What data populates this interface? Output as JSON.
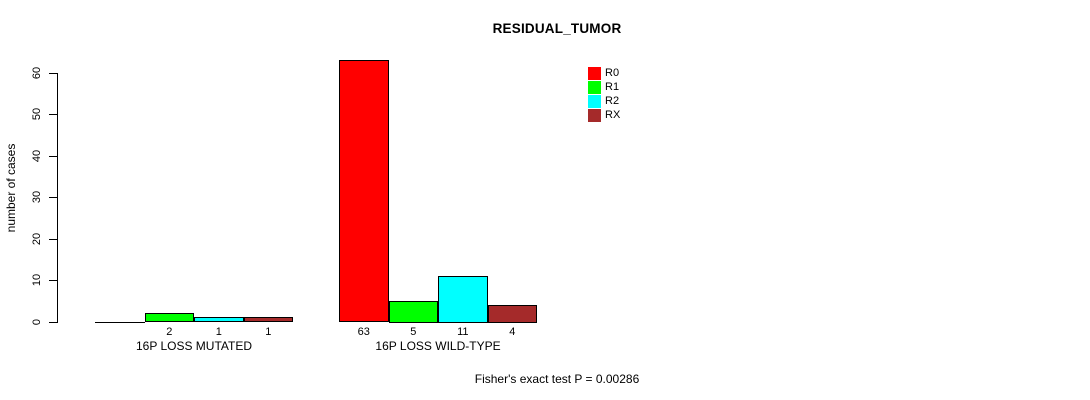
{
  "chart_data": {
    "type": "bar",
    "title": "RESIDUAL_TUMOR",
    "ylabel": "number of cases",
    "xlabel": "",
    "categories": [
      "16P LOSS MUTATED",
      "16P LOSS WILD-TYPE"
    ],
    "series": [
      {
        "name": "R0",
        "color": "#ff0000",
        "values": [
          0,
          63
        ]
      },
      {
        "name": "R1",
        "color": "#00ff00",
        "values": [
          2,
          5
        ]
      },
      {
        "name": "R2",
        "color": "#00ffff",
        "values": [
          1,
          11
        ]
      },
      {
        "name": "RX",
        "color": "#a52a2a",
        "values": [
          1,
          4
        ]
      }
    ],
    "bar_count_labels": {
      "16P LOSS MUTATED": [
        "",
        "2",
        "1",
        "1"
      ],
      "16P LOSS WILD-TYPE": [
        "63",
        "5",
        "11",
        "4"
      ]
    },
    "hide_zero_count_labels": true,
    "yticks": [
      0,
      10,
      20,
      30,
      40,
      50,
      60
    ],
    "ylim": [
      0,
      60
    ],
    "grid": false,
    "legend_position": "top-right",
    "legend_entries": [
      "R0",
      "R1",
      "R2",
      "RX"
    ],
    "footnote": "Fisher's exact test P = 0.00286"
  }
}
